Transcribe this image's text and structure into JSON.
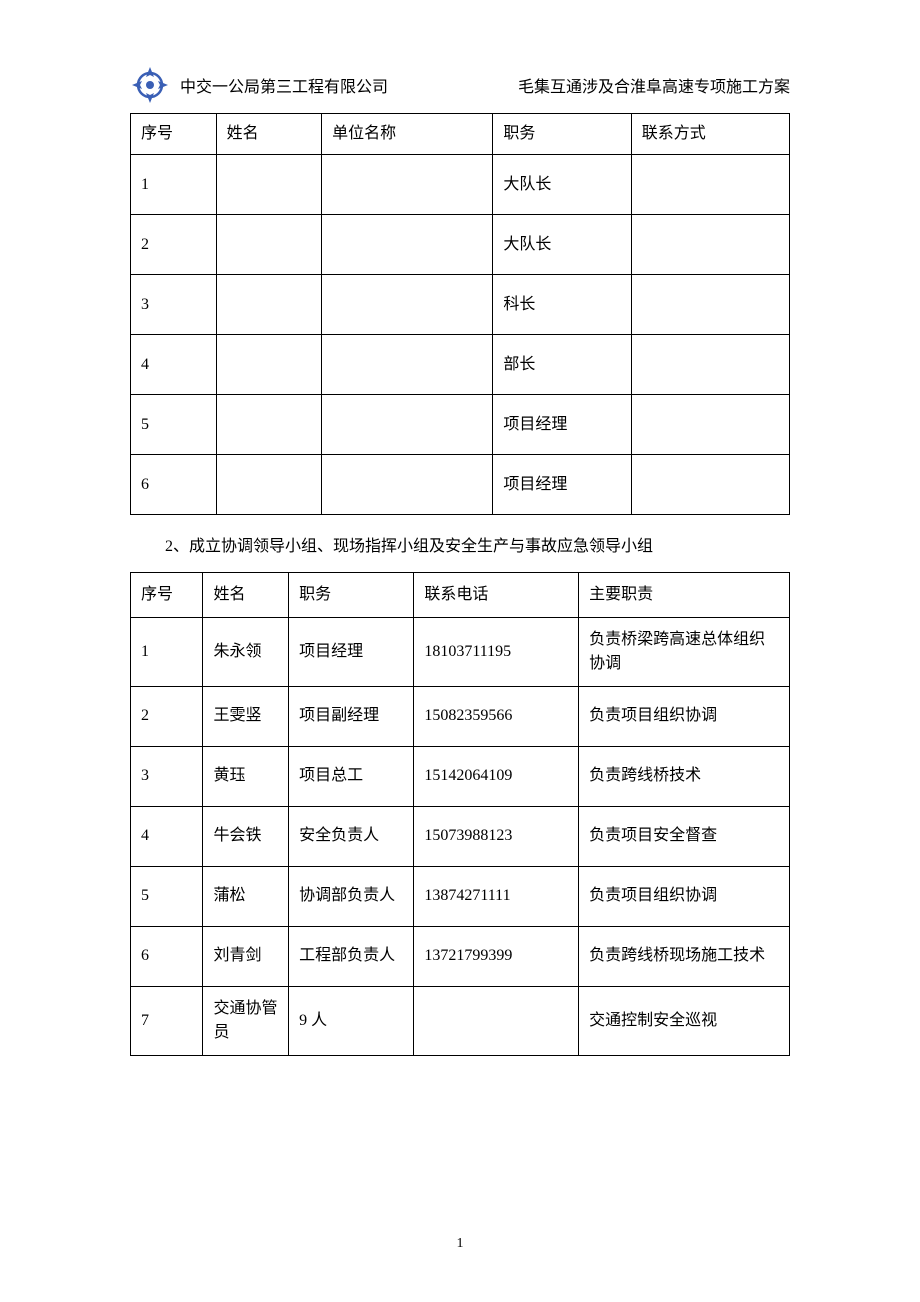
{
  "header": {
    "left": "中交一公局第三工程有限公司",
    "right": "毛集互通涉及合淮阜高速专项施工方案"
  },
  "table1": {
    "columns": [
      "序号",
      "姓名",
      "单位名称",
      "职务",
      "联系方式"
    ],
    "col_widths": [
      "13%",
      "16%",
      "26%",
      "21%",
      "24%"
    ],
    "rows": [
      [
        "1",
        "",
        "",
        "大队长",
        ""
      ],
      [
        "2",
        "",
        "",
        "大队长",
        ""
      ],
      [
        "3",
        "",
        "",
        "科长",
        ""
      ],
      [
        "4",
        "",
        "",
        "部长",
        ""
      ],
      [
        "5",
        "",
        "",
        "项目经理",
        ""
      ],
      [
        "6",
        "",
        "",
        "项目经理",
        ""
      ]
    ]
  },
  "section_text": "2、成立协调领导小组、现场指挥小组及安全生产与事故应急领导小组",
  "table2": {
    "columns": [
      "序号",
      "姓名",
      "职务",
      "联系电话",
      "主要职责"
    ],
    "col_widths": [
      "11%",
      "13%",
      "19%",
      "25%",
      "32%"
    ],
    "rows": [
      [
        "1",
        "朱永领",
        "项目经理",
        "18103711195",
        "负责桥梁跨高速总体组织协调"
      ],
      [
        "2",
        "王雯竖",
        "项目副经理",
        "15082359566",
        "负责项目组织协调"
      ],
      [
        "3",
        "黄珏",
        "项目总工",
        "15142064109",
        "负责跨线桥技术"
      ],
      [
        "4",
        "牛会铁",
        "安全负责人",
        "15073988123",
        "负责项目安全督查"
      ],
      [
        "5",
        "蒲松",
        "协调部负责人",
        "13874271111",
        "负责项目组织协调"
      ],
      [
        "6",
        "刘青剑",
        "工程部负责人",
        "13721799399",
        "负责跨线桥现场施工技术"
      ],
      [
        "7",
        "交通协管员",
        "9 人",
        "",
        "交通控制安全巡视"
      ]
    ]
  },
  "page_number": "1",
  "colors": {
    "text": "#000000",
    "border": "#000000",
    "background": "#ffffff",
    "logo_blue": "#3a5fb5"
  },
  "typography": {
    "body_fontsize": 16,
    "font_family": "SimSun"
  }
}
